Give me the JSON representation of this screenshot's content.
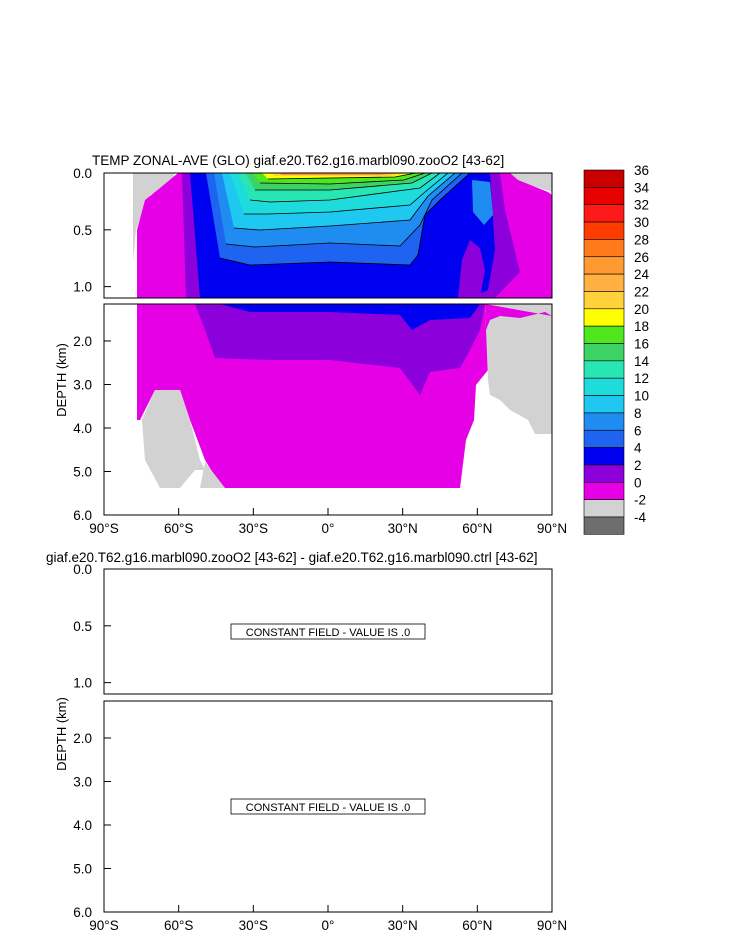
{
  "chart_data": [
    {
      "type": "contour",
      "title": "TEMP ZONAL-AVE (GLO) giaf.e20.T62.g16.marbl090.zooO2 [43-62]",
      "ylabel": "DEPTH (km)",
      "x_tick_labels": [
        "90°S",
        "60°S",
        "30°S",
        "0°",
        "30°N",
        "60°N",
        "90°N"
      ],
      "x_ticks": [
        -90,
        -60,
        -30,
        0,
        30,
        60,
        90
      ],
      "upper_panel": {
        "ylim": [
          0.0,
          1.1
        ],
        "y_tick_labels": [
          "0.0",
          "0.5",
          "1.0"
        ],
        "y_ticks": [
          0.0,
          0.5,
          1.0
        ]
      },
      "lower_panel": {
        "ylim": [
          1.15,
          6.0
        ],
        "y_tick_labels": [
          "2.0",
          "3.0",
          "4.0",
          "5.0",
          "6.0"
        ],
        "y_ticks": [
          2.0,
          3.0,
          4.0,
          5.0,
          6.0
        ]
      },
      "colorbar": {
        "labels": [
          "36",
          "34",
          "32",
          "30",
          "28",
          "26",
          "24",
          "22",
          "20",
          "18",
          "16",
          "14",
          "12",
          "10",
          "8",
          "6",
          "4",
          "2",
          "0",
          "-2",
          "-4"
        ],
        "colors": [
          "#c80000",
          "#e60000",
          "#ff1a1a",
          "#ff3c00",
          "#ff7a1a",
          "#ff9a33",
          "#ffb040",
          "#ffd23c",
          "#ffff00",
          "#50e61e",
          "#3cd264",
          "#28e6b4",
          "#1edcdc",
          "#1ec8f0",
          "#1e8cf0",
          "#1e64f0",
          "#0000f0",
          "#8c00dc",
          "#e600e6",
          "#d2d2d2",
          "#6e6e6e"
        ]
      }
    },
    {
      "type": "contour",
      "title": "giaf.e20.T62.g16.marbl090.zooO2 [43-62] - giaf.e20.T62.g16.marbl090.ctrl [43-62]",
      "ylabel": "DEPTH (km)",
      "x_tick_labels": [
        "90°S",
        "60°S",
        "30°S",
        "0°",
        "30°N",
        "60°N",
        "90°N"
      ],
      "x_ticks": [
        -90,
        -60,
        -30,
        0,
        30,
        60,
        90
      ],
      "upper_panel": {
        "ylim": [
          0.0,
          1.1
        ],
        "y_tick_labels": [
          "0.0",
          "0.5",
          "1.0"
        ],
        "y_ticks": [
          0.0,
          0.5,
          1.0
        ],
        "annotation": "CONSTANT FIELD - VALUE IS .0"
      },
      "lower_panel": {
        "ylim": [
          1.15,
          6.0
        ],
        "y_tick_labels": [
          "2.0",
          "3.0",
          "4.0",
          "5.0"
        ],
        "y_ticks": [
          2.0,
          3.0,
          4.0,
          5.0
        ],
        "bottom_label": "6.0",
        "annotation": "CONSTANT FIELD - VALUE IS .0"
      }
    }
  ]
}
